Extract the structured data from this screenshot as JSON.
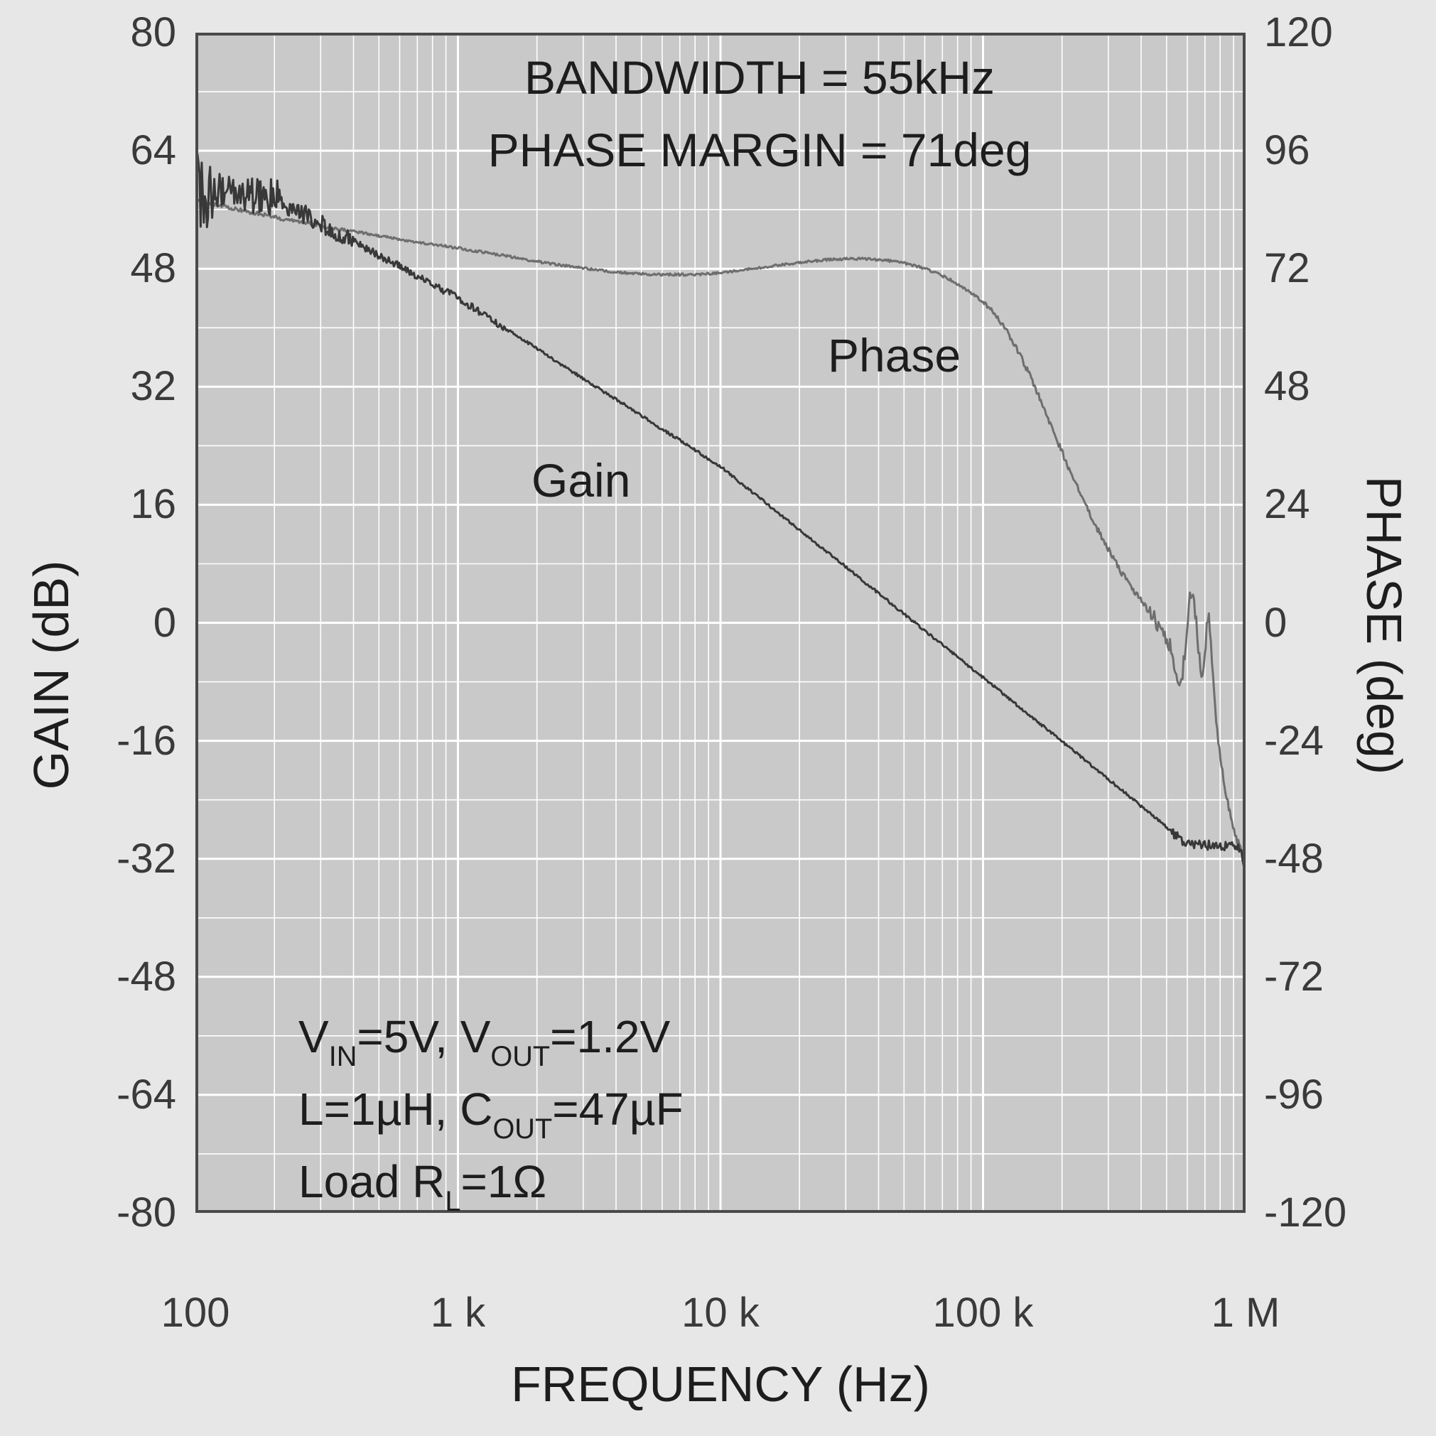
{
  "figure": {
    "type": "bode-plot"
  },
  "annotations": {
    "bandwidth": "BANDWIDTH = 55kHz",
    "phase_margin": "PHASE MARGIN = 71deg"
  },
  "curve_labels": {
    "gain": "Gain",
    "phase": "Phase"
  },
  "axes": {
    "x": {
      "label": "FREQUENCY (Hz)",
      "ticks": [
        {
          "f": 100,
          "label": "100"
        },
        {
          "f": 1000,
          "label": "1 k"
        },
        {
          "f": 10000,
          "label": "10 k"
        },
        {
          "f": 100000,
          "label": "100 k"
        },
        {
          "f": 1000000,
          "label": "1 M"
        }
      ]
    },
    "y_left": {
      "label": "GAIN (dB)",
      "ticks": [
        "80",
        "64",
        "48",
        "32",
        "16",
        "0",
        "-16",
        "-32",
        "-48",
        "-64",
        "-80"
      ]
    },
    "y_right": {
      "label": "PHASE (deg)",
      "ticks": [
        "120",
        "96",
        "72",
        "48",
        "24",
        "0",
        "-24",
        "-48",
        "-72",
        "-96",
        "-120"
      ]
    }
  },
  "conditions": [
    [
      {
        "t": "V"
      },
      {
        "sub": "IN"
      },
      {
        "t": "=5V, V"
      },
      {
        "sub": "OUT"
      },
      {
        "t": "=1.2V"
      }
    ],
    [
      {
        "t": "L=1µH, C"
      },
      {
        "sub": "OUT"
      },
      {
        "t": "=47µF"
      }
    ],
    [
      {
        "t": "Load R"
      },
      {
        "sub": "L"
      },
      {
        "t": "=1Ω"
      }
    ]
  ],
  "colors": {
    "page_bg": "#e7e7e7",
    "plot_bg": "#c9c9c9",
    "grid": "#ffffff",
    "border": "#4a4a4a",
    "text": "#1d1d1d",
    "tick_text": "#3a3a3a",
    "gain_curve": "#383838",
    "phase_curve": "#6e6e6e"
  },
  "chart_data": {
    "type": "line",
    "title": "",
    "xlabel": "FREQUENCY (Hz)",
    "x_scale": "log",
    "x_range": [
      100,
      1000000
    ],
    "grid": true,
    "y_left": {
      "label": "GAIN (dB)",
      "range": [
        -80,
        80
      ],
      "major_step": 16,
      "minor_step": 8
    },
    "y_right": {
      "label": "PHASE (deg)",
      "range": [
        -120,
        120
      ],
      "major_step": 24,
      "minor_step": 12
    },
    "annotations": [
      "BANDWIDTH = 55kHz",
      "PHASE MARGIN = 71deg",
      "VIN=5V, VOUT=1.2V",
      "L=1µH, COUT=47µF",
      "Load RL=1Ω"
    ],
    "series": [
      {
        "name": "Gain",
        "axis": "left",
        "unit": "dB",
        "color": "#383838",
        "points": [
          [
            100,
            58.5
          ],
          [
            115,
            58.3
          ],
          [
            130,
            58.5
          ],
          [
            145,
            58.1
          ],
          [
            160,
            58.2
          ],
          [
            175,
            58.0
          ],
          [
            190,
            58.0
          ],
          [
            200,
            57.6
          ],
          [
            230,
            56.4
          ],
          [
            260,
            55.4
          ],
          [
            300,
            54.2
          ],
          [
            350,
            52.9
          ],
          [
            400,
            51.7
          ],
          [
            460,
            50.5
          ],
          [
            530,
            49.3
          ],
          [
            610,
            48.2
          ],
          [
            700,
            47.0
          ],
          [
            800,
            45.9
          ],
          [
            900,
            44.9
          ],
          [
            1000,
            44.0
          ],
          [
            1200,
            42.2
          ],
          [
            1450,
            40.3
          ],
          [
            1750,
            38.5
          ],
          [
            2100,
            36.7
          ],
          [
            2500,
            34.9
          ],
          [
            3000,
            33.1
          ],
          [
            3600,
            31.3
          ],
          [
            4300,
            29.6
          ],
          [
            5200,
            27.7
          ],
          [
            6200,
            25.9
          ],
          [
            7500,
            24.1
          ],
          [
            9000,
            22.2
          ],
          [
            10000,
            21.2
          ],
          [
            12000,
            18.9
          ],
          [
            14500,
            16.6
          ],
          [
            17500,
            14.2
          ],
          [
            21000,
            12.0
          ],
          [
            25000,
            9.8
          ],
          [
            30000,
            7.6
          ],
          [
            36000,
            5.3
          ],
          [
            43000,
            3.1
          ],
          [
            52000,
            0.7
          ],
          [
            62000,
            -1.5
          ],
          [
            75000,
            -3.8
          ],
          [
            90000,
            -6.1
          ],
          [
            100000,
            -7.4
          ],
          [
            120000,
            -9.7
          ],
          [
            145000,
            -12.1
          ],
          [
            175000,
            -14.4
          ],
          [
            210000,
            -16.7
          ],
          [
            250000,
            -18.9
          ],
          [
            300000,
            -21.2
          ],
          [
            360000,
            -23.5
          ],
          [
            430000,
            -25.8
          ],
          [
            500000,
            -27.7
          ],
          [
            550000,
            -29.0
          ],
          [
            600000,
            -30.2
          ],
          [
            650000,
            -29.8
          ],
          [
            700000,
            -30.3
          ],
          [
            760000,
            -29.9
          ],
          [
            820000,
            -30.3
          ],
          [
            880000,
            -30.0
          ],
          [
            930000,
            -30.2
          ],
          [
            960000,
            -30.6
          ],
          [
            980000,
            -32.0
          ],
          [
            990000,
            -33.8
          ],
          [
            1000000,
            -36.0
          ]
        ]
      },
      {
        "name": "Phase",
        "axis": "right",
        "unit": "deg",
        "color": "#6e6e6e",
        "points": [
          [
            100,
            86.0
          ],
          [
            120,
            85.0
          ],
          [
            140,
            84.2
          ],
          [
            170,
            83.3
          ],
          [
            200,
            82.5
          ],
          [
            240,
            81.7
          ],
          [
            290,
            80.9
          ],
          [
            350,
            80.1
          ],
          [
            420,
            79.4
          ],
          [
            500,
            78.7
          ],
          [
            600,
            78.0
          ],
          [
            720,
            77.3
          ],
          [
            860,
            76.7
          ],
          [
            1000,
            76.2
          ],
          [
            1200,
            75.5
          ],
          [
            1450,
            74.8
          ],
          [
            1750,
            74.0
          ],
          [
            2100,
            73.3
          ],
          [
            2500,
            72.7
          ],
          [
            3000,
            72.1
          ],
          [
            3600,
            71.6
          ],
          [
            4300,
            71.2
          ],
          [
            5200,
            70.9
          ],
          [
            6200,
            70.8
          ],
          [
            7500,
            70.8
          ],
          [
            9000,
            71.0
          ],
          [
            10000,
            71.2
          ],
          [
            12000,
            71.7
          ],
          [
            14500,
            72.3
          ],
          [
            17500,
            72.9
          ],
          [
            21000,
            73.4
          ],
          [
            25000,
            73.8
          ],
          [
            30000,
            74.0
          ],
          [
            36000,
            74.0
          ],
          [
            43000,
            73.7
          ],
          [
            50000,
            73.2
          ],
          [
            58000,
            72.3
          ],
          [
            66000,
            71.2
          ],
          [
            75000,
            69.8
          ],
          [
            85000,
            68.0
          ],
          [
            95000,
            66.2
          ],
          [
            100000,
            65.2
          ],
          [
            108000,
            63.6
          ],
          [
            115000,
            61.8
          ],
          [
            125000,
            58.8
          ],
          [
            135000,
            55.5
          ],
          [
            150000,
            50.5
          ],
          [
            165000,
            45.5
          ],
          [
            185000,
            39.0
          ],
          [
            210000,
            32.0
          ],
          [
            240000,
            25.0
          ],
          [
            270000,
            19.5
          ],
          [
            300000,
            15.0
          ],
          [
            330000,
            11.0
          ],
          [
            360000,
            7.8
          ],
          [
            400000,
            4.5
          ],
          [
            440000,
            1.5
          ],
          [
            480000,
            -1.5
          ],
          [
            510000,
            -4.0
          ],
          [
            530000,
            -7.0
          ],
          [
            550000,
            -11.0
          ],
          [
            565000,
            -14.0
          ],
          [
            580000,
            -9.0
          ],
          [
            595000,
            -2.0
          ],
          [
            610000,
            4.0
          ],
          [
            625000,
            8.0
          ],
          [
            640000,
            4.0
          ],
          [
            655000,
            -3.0
          ],
          [
            670000,
            -9.0
          ],
          [
            685000,
            -13.0
          ],
          [
            700000,
            -8.0
          ],
          [
            712000,
            0.0
          ],
          [
            722000,
            6.0
          ],
          [
            732000,
            1.0
          ],
          [
            742000,
            -7.0
          ],
          [
            755000,
            -14.0
          ],
          [
            775000,
            -21.0
          ],
          [
            800000,
            -27.0
          ],
          [
            830000,
            -33.0
          ],
          [
            865000,
            -38.0
          ],
          [
            900000,
            -42.0
          ],
          [
            940000,
            -45.0
          ],
          [
            970000,
            -47.0
          ],
          [
            1000000,
            -49.0
          ]
        ]
      }
    ],
    "noise": {
      "Gain": [
        [
          100,
          118,
          5.0
        ],
        [
          118,
          210,
          2.6
        ],
        [
          210,
          400,
          1.3
        ],
        [
          400,
          1500,
          0.5
        ],
        [
          1500,
          520000,
          0.18
        ],
        [
          520000,
          960000,
          0.65
        ],
        [
          960000,
          1000000,
          0.4
        ]
      ],
      "Phase": [
        [
          100,
          400,
          0.4
        ],
        [
          400,
          100000,
          0.25
        ],
        [
          100000,
          430000,
          0.6
        ],
        [
          430000,
          760000,
          1.6
        ],
        [
          760000,
          1000000,
          0.8
        ]
      ]
    }
  }
}
